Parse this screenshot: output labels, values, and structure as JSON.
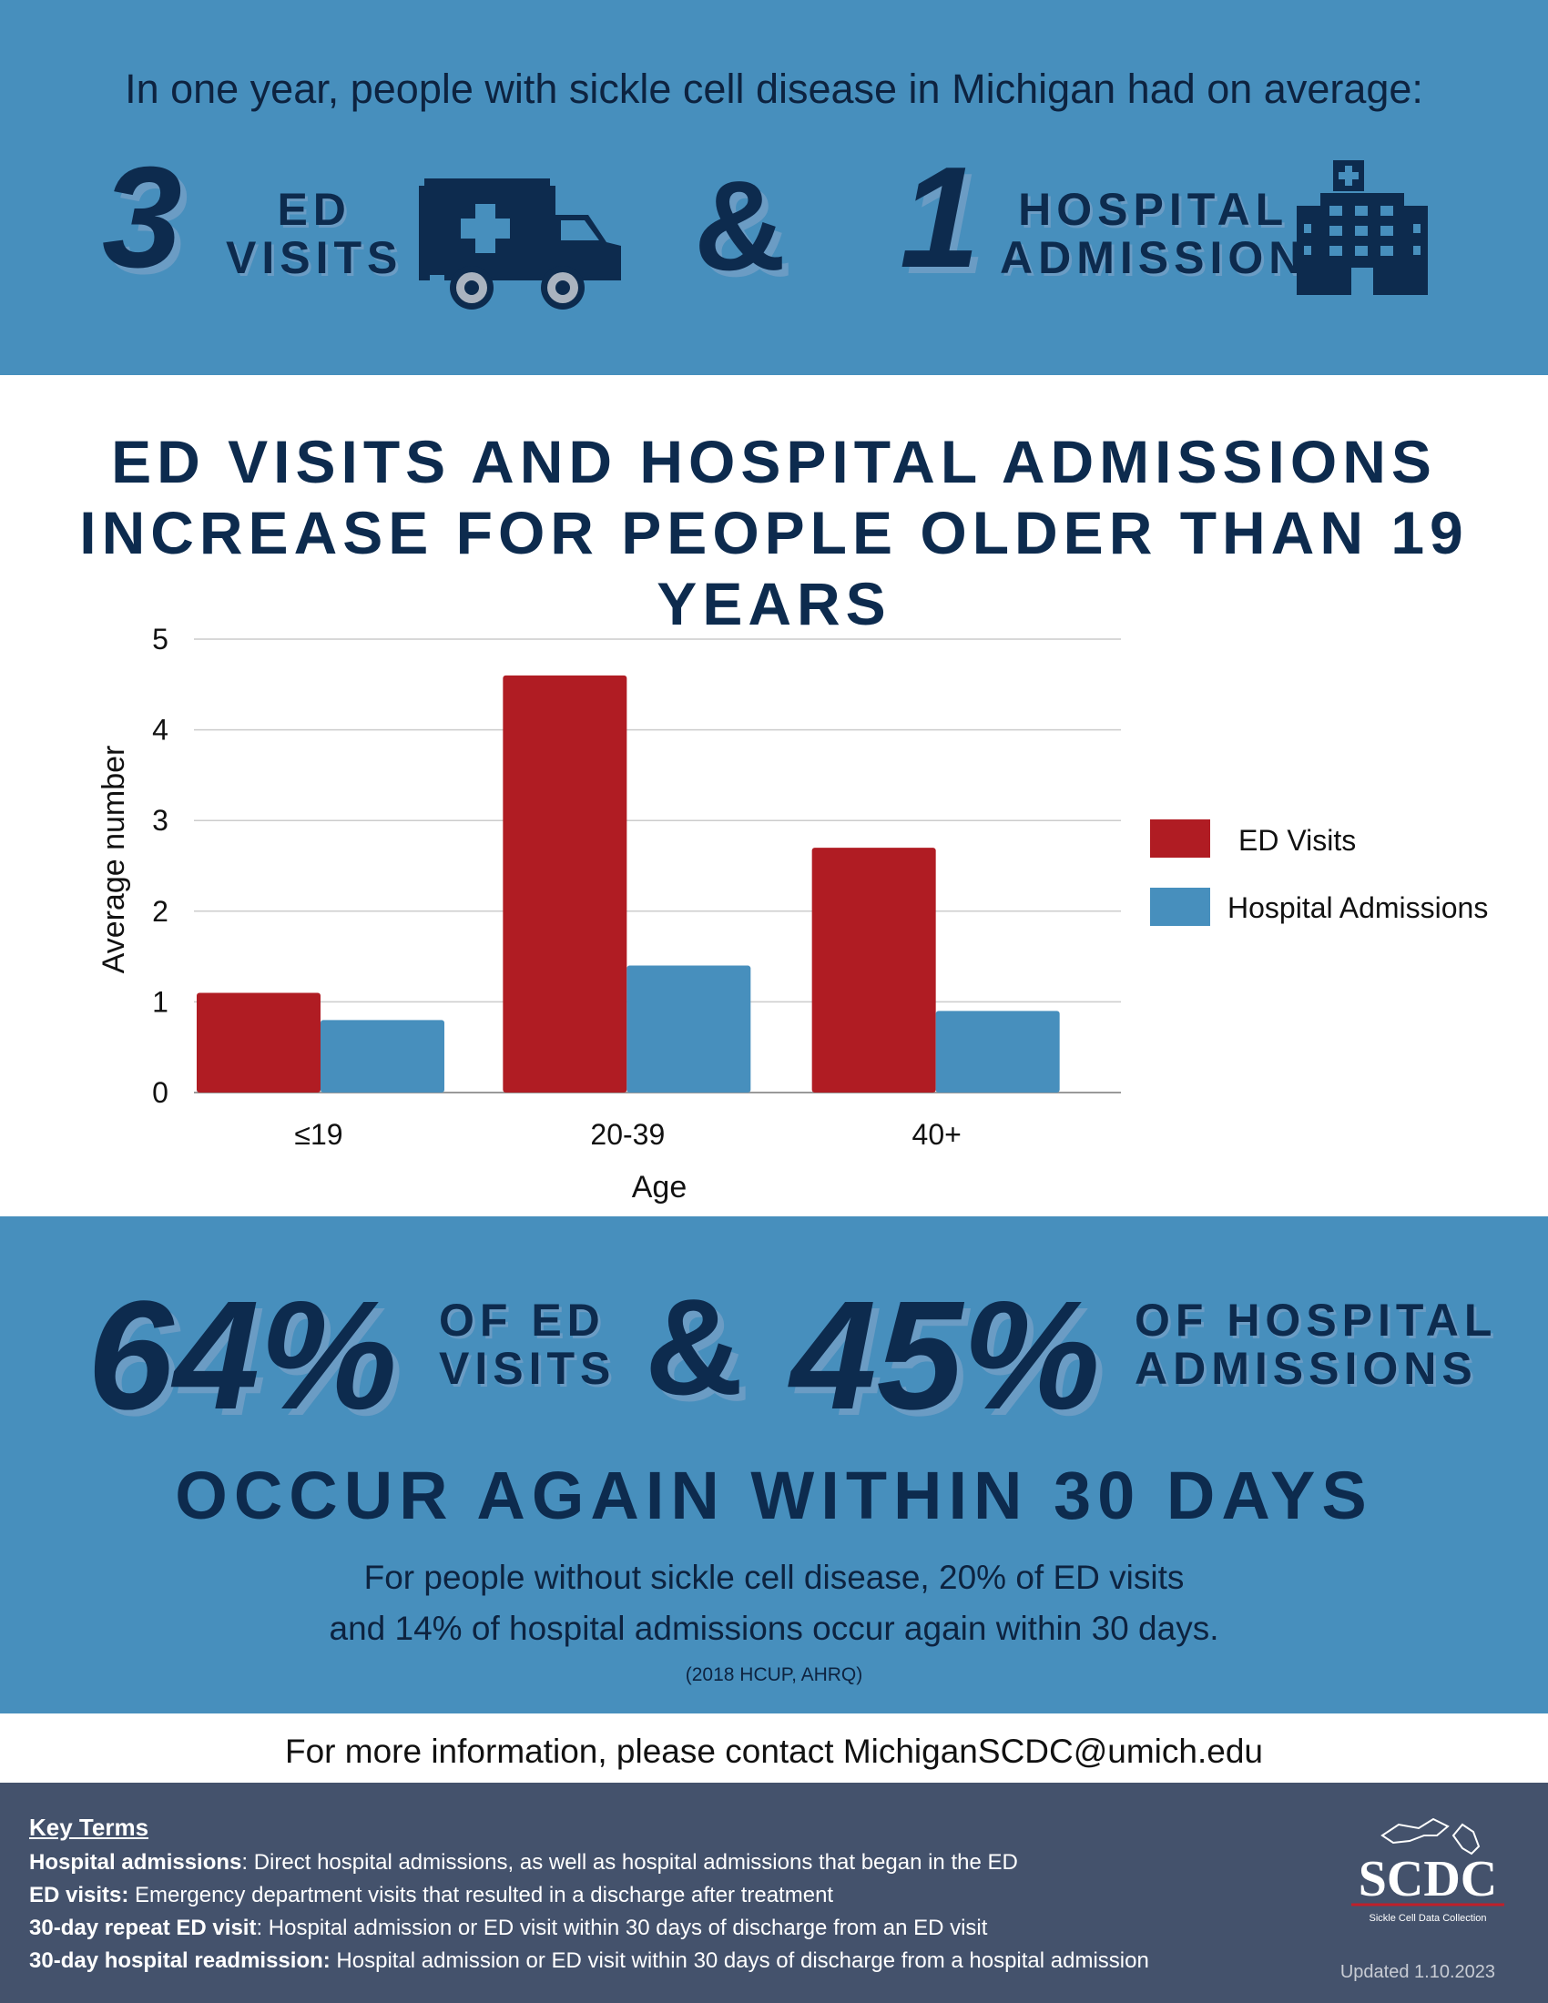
{
  "header": {
    "intro": "In one year, people with sickle cell disease in Michigan had on average:",
    "ed_number": "3",
    "ed_label_line1": "ED",
    "ed_label_line2": "VISITS",
    "ampersand": "&",
    "hosp_number": "1",
    "hosp_label_line1": "HOSPITAL",
    "hosp_label_line2": "ADMISSION",
    "icons": [
      "ambulance-icon",
      "hospital-building-icon"
    ]
  },
  "chart_title": "ED VISITS AND HOSPITAL ADMISSIONS INCREASE FOR PEOPLE OLDER THAN 19 YEARS",
  "chart_data": {
    "type": "bar",
    "title": "ED VISITS AND HOSPITAL ADMISSIONS INCREASE FOR PEOPLE OLDER THAN 19 YEARS",
    "categories": [
      "≤19",
      "20-39",
      "40+"
    ],
    "series": [
      {
        "name": "ED Visits",
        "values": [
          1.1,
          4.6,
          2.7
        ],
        "color": "#b01c23"
      },
      {
        "name": "Hospital Admissions",
        "values": [
          0.8,
          1.4,
          0.9
        ],
        "color": "#478fbd"
      }
    ],
    "xlabel": "Age",
    "ylabel": "Average number",
    "ylim": [
      0,
      5
    ],
    "yticks": [
      "0",
      "1",
      "2",
      "3",
      "4",
      "5"
    ],
    "grid": true,
    "legend": "right"
  },
  "recurrence": {
    "ed_pct": "64%",
    "ed_label_line1": "OF ED",
    "ed_label_line2": "VISITS",
    "ampersand": "&",
    "hosp_pct": "45%",
    "hosp_label_line1": "OF HOSPITAL",
    "hosp_label_line2": "ADMISSIONS",
    "headline": "OCCUR AGAIN WITHIN 30 DAYS",
    "comparison_line1": "For people without sickle cell disease, 20% of ED visits",
    "comparison_line2": "and 14% of hospital admissions occur again within 30 days.",
    "source": "(2018 HCUP, AHRQ)"
  },
  "contact": "For more information, please contact MichiganSCDC@umich.edu",
  "footer": {
    "key_terms_heading": "Key Terms",
    "terms": [
      {
        "term": "Hospital admissions",
        "definition": ": Direct hospital admissions, as well as hospital admissions that began in the ED"
      },
      {
        "term": "ED visits:",
        "definition": " Emergency department visits that resulted in a discharge after treatment"
      },
      {
        "term": "30-day repeat ED visit",
        "definition": ": Hospital admission or ED visit within 30 days of discharge from an ED visit"
      },
      {
        "term": "30-day hospital readmission:",
        "definition": " Hospital admission or ED visit within 30 days of discharge from a hospital admission"
      }
    ],
    "logo_text": "SCDC",
    "logo_subtitle": "Sickle Cell Data Collection",
    "updated": "Updated 1.10.2023"
  }
}
